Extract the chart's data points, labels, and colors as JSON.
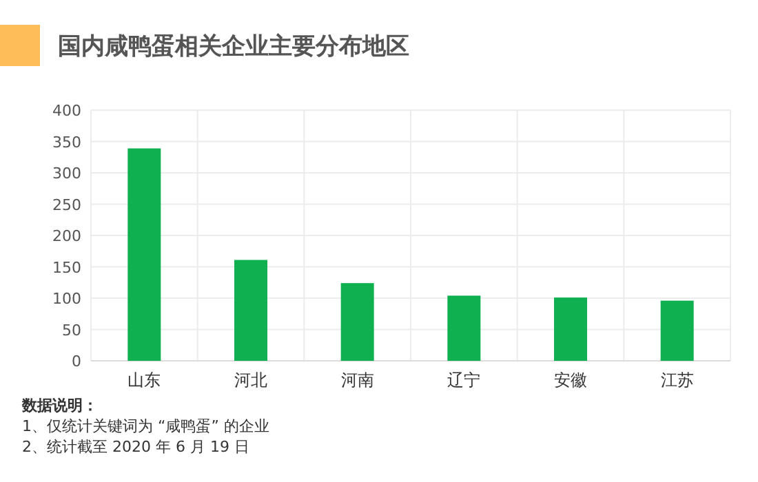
{
  "chart_data": {
    "type": "bar",
    "title": "国内咸鸭蛋相关企业主要分布地区",
    "categories": [
      "山东",
      "河北",
      "河南",
      "辽宁",
      "安徽",
      "江苏"
    ],
    "values": [
      339,
      161,
      124,
      104,
      101,
      96
    ],
    "color": "#0fb050",
    "ylim": [
      0,
      400
    ],
    "yticks": [
      0,
      50,
      100,
      150,
      200,
      250,
      300,
      350,
      400
    ],
    "grid": true,
    "annotations": [
      "数据说明：",
      "1、仅统计关键词为 “咸鸭蛋” 的企业",
      "2、统计截至 2020 年 6 月 19 日"
    ]
  }
}
